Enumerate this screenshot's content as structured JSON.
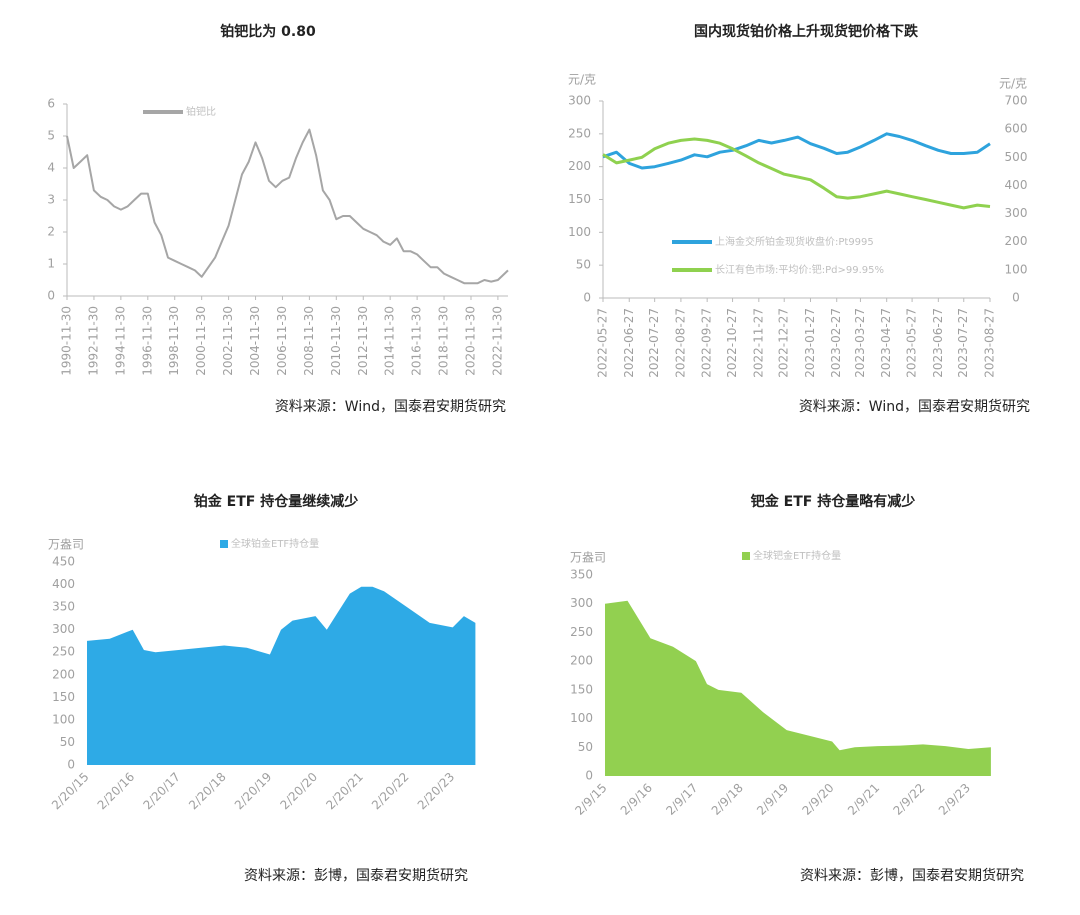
{
  "chart_data": [
    {
      "type": "line",
      "title": "铂钯比为 0.80",
      "source": "资料来源：Wind，国泰君安期货研究",
      "x": [
        "1990-11-30",
        "1991-05-31",
        "1991-11-30",
        "1992-05-31",
        "1992-11-30",
        "1993-05-31",
        "1993-11-30",
        "1994-05-31",
        "1994-11-30",
        "1995-05-31",
        "1995-11-30",
        "1996-05-31",
        "1996-11-30",
        "1997-05-31",
        "1997-11-30",
        "1998-05-31",
        "1998-11-30",
        "1999-05-31",
        "1999-11-30",
        "2000-05-31",
        "2000-11-30",
        "2001-05-31",
        "2001-11-30",
        "2002-05-31",
        "2002-11-30",
        "2003-05-31",
        "2003-11-30",
        "2004-05-31",
        "2004-11-30",
        "2005-05-31",
        "2005-11-30",
        "2006-05-31",
        "2006-11-30",
        "2007-05-31",
        "2007-11-30",
        "2008-05-31",
        "2008-11-30",
        "2009-05-31",
        "2009-11-30",
        "2010-05-31",
        "2010-11-30",
        "2011-05-31",
        "2011-11-30",
        "2012-05-31",
        "2012-11-30",
        "2013-05-31",
        "2013-11-30",
        "2014-05-31",
        "2014-11-30",
        "2015-05-31",
        "2015-11-30",
        "2016-05-31",
        "2016-11-30",
        "2017-05-31",
        "2017-11-30",
        "2018-05-31",
        "2018-11-30",
        "2019-05-31",
        "2019-11-30",
        "2020-05-31",
        "2020-11-30",
        "2021-05-31",
        "2021-11-30",
        "2022-05-31",
        "2022-11-30",
        "2023-05-31",
        "2023-08-31"
      ],
      "series": [
        {
          "name": "铂钯比",
          "color": "#a6a6a6",
          "values": [
            5.0,
            4.0,
            4.2,
            4.4,
            3.3,
            3.1,
            3.0,
            2.8,
            2.7,
            2.8,
            3.0,
            3.2,
            3.2,
            2.3,
            1.9,
            1.2,
            1.1,
            1.0,
            0.9,
            0.8,
            0.6,
            0.9,
            1.2,
            1.7,
            2.2,
            3.0,
            3.8,
            4.2,
            4.8,
            4.3,
            3.6,
            3.4,
            3.6,
            3.7,
            4.3,
            4.8,
            5.2,
            4.4,
            3.3,
            3.0,
            2.4,
            2.5,
            2.5,
            2.3,
            2.1,
            2.0,
            1.9,
            1.7,
            1.6,
            1.8,
            1.4,
            1.4,
            1.3,
            1.1,
            0.9,
            0.9,
            0.7,
            0.6,
            0.5,
            0.4,
            0.4,
            0.4,
            0.5,
            0.45,
            0.5,
            0.7,
            0.8
          ]
        }
      ],
      "xlim": [
        "1990-11-30",
        "2023-08-31"
      ],
      "xticks": [
        "1990-11-30",
        "1992-11-30",
        "1994-11-30",
        "1996-11-30",
        "1998-11-30",
        "2000-11-30",
        "2002-11-30",
        "2004-11-30",
        "2006-11-30",
        "2008-11-30",
        "2010-11-30",
        "2012-11-30",
        "2014-11-30",
        "2016-11-30",
        "2018-11-30",
        "2020-11-30",
        "2022-11-30"
      ],
      "ylim": [
        0,
        6
      ],
      "yticks": [
        0,
        1,
        2,
        3,
        4,
        5,
        6
      ]
    },
    {
      "type": "line",
      "title": "国内现货铂价格上升现货钯价格下跌",
      "source": "资料来源：Wind，国泰君安期货研究",
      "y_unit": "元/克",
      "y2_unit": "元/克",
      "x": [
        "2022-05-27",
        "2022-06-12",
        "2022-06-27",
        "2022-07-12",
        "2022-07-27",
        "2022-08-12",
        "2022-08-27",
        "2022-09-12",
        "2022-09-27",
        "2022-10-12",
        "2022-10-27",
        "2022-11-12",
        "2022-11-27",
        "2022-12-12",
        "2022-12-27",
        "2023-01-12",
        "2023-01-27",
        "2023-02-12",
        "2023-02-27",
        "2023-03-12",
        "2023-03-27",
        "2023-04-12",
        "2023-04-27",
        "2023-05-12",
        "2023-05-27",
        "2023-06-12",
        "2023-06-27",
        "2023-07-12",
        "2023-07-27",
        "2023-08-12",
        "2023-08-27"
      ],
      "series": [
        {
          "name": "上海金交所铂金现货收盘价:Pt9995",
          "color": "#2ea3dd",
          "values": [
            215,
            222,
            205,
            198,
            200,
            205,
            210,
            218,
            215,
            222,
            225,
            232,
            240,
            236,
            240,
            245,
            235,
            228,
            220,
            222,
            230,
            240,
            250,
            246,
            240,
            232,
            225,
            220,
            220,
            222,
            235
          ]
        },
        {
          "name": "长江有色市场:平均价:钯:Pd>99.95%",
          "color": "#8fd14f",
          "axis": "y2",
          "values": [
            510,
            480,
            490,
            500,
            530,
            550,
            560,
            565,
            560,
            550,
            530,
            505,
            480,
            460,
            440,
            430,
            420,
            390,
            360,
            355,
            360,
            370,
            380,
            370,
            360,
            350,
            340,
            330,
            320,
            330,
            325
          ]
        }
      ],
      "xlim": [
        "2022-05-27",
        "2023-08-27"
      ],
      "xticks": [
        "2022-05-27",
        "2022-06-27",
        "2022-07-27",
        "2022-08-27",
        "2022-09-27",
        "2022-10-27",
        "2022-11-27",
        "2022-12-27",
        "2023-01-27",
        "2023-02-27",
        "2023-03-27",
        "2023-04-27",
        "2023-05-27",
        "2023-06-27",
        "2023-07-27",
        "2023-08-27"
      ],
      "ylim": [
        0,
        300
      ],
      "yticks": [
        0,
        50,
        100,
        150,
        200,
        250,
        300
      ],
      "y2lim": [
        0,
        700
      ],
      "y2ticks": [
        0,
        100,
        200,
        300,
        400,
        500,
        600,
        700
      ]
    },
    {
      "type": "area",
      "title": "铂金 ETF 持仓量继续减少",
      "source": "资料来源：彭博，国泰君安期货研究",
      "y_unit": "万盎司",
      "x": [
        "2015-02-20",
        "2015-08-20",
        "2016-02-20",
        "2016-05-20",
        "2016-08-20",
        "2017-02-20",
        "2017-08-20",
        "2018-02-20",
        "2018-08-20",
        "2019-02-20",
        "2019-05-20",
        "2019-08-20",
        "2020-02-20",
        "2020-05-20",
        "2020-08-20",
        "2020-11-20",
        "2021-02-20",
        "2021-05-20",
        "2021-08-20",
        "2022-02-20",
        "2022-08-20",
        "2023-02-20",
        "2023-05-20",
        "2023-08-20"
      ],
      "series": [
        {
          "name": "全球铂金ETF持仓量",
          "color": "#2eaae6",
          "values": [
            275,
            280,
            300,
            255,
            250,
            255,
            260,
            265,
            260,
            245,
            300,
            320,
            330,
            300,
            340,
            380,
            395,
            395,
            385,
            350,
            315,
            305,
            330,
            315
          ]
        }
      ],
      "xlim": [
        "2015-02-20",
        "2023-10-20"
      ],
      "xticks": [
        {
          "value": "2015-02-20",
          "label": "2/20/15"
        },
        {
          "value": "2016-02-20",
          "label": "2/20/16"
        },
        {
          "value": "2017-02-20",
          "label": "2/20/17"
        },
        {
          "value": "2018-02-20",
          "label": "2/20/18"
        },
        {
          "value": "2019-02-20",
          "label": "2/20/19"
        },
        {
          "value": "2020-02-20",
          "label": "2/20/20"
        },
        {
          "value": "2021-02-20",
          "label": "2/20/21"
        },
        {
          "value": "2022-02-20",
          "label": "2/20/22"
        },
        {
          "value": "2023-02-20",
          "label": "2/20/23"
        }
      ],
      "ylim": [
        0,
        450
      ],
      "yticks": [
        0,
        50,
        100,
        150,
        200,
        250,
        300,
        350,
        400,
        450
      ]
    },
    {
      "type": "area",
      "title": "钯金 ETF 持仓量略有减少",
      "source": "资料来源：彭博，国泰君安期货研究",
      "y_unit": "万盎司",
      "x": [
        "2015-02-09",
        "2015-08-09",
        "2016-02-09",
        "2016-08-09",
        "2017-02-09",
        "2017-05-09",
        "2017-08-09",
        "2018-02-09",
        "2018-08-09",
        "2019-02-09",
        "2019-08-09",
        "2020-02-09",
        "2020-04-09",
        "2020-08-09",
        "2021-02-09",
        "2021-08-09",
        "2022-02-09",
        "2022-08-09",
        "2023-02-09",
        "2023-08-09"
      ],
      "series": [
        {
          "name": "全球钯金ETF持仓量",
          "color": "#92d050",
          "values": [
            300,
            305,
            240,
            225,
            200,
            160,
            150,
            145,
            110,
            80,
            70,
            60,
            45,
            50,
            52,
            53,
            55,
            52,
            47,
            50
          ]
        }
      ],
      "xlim": [
        "2015-02-09",
        "2023-11-30"
      ],
      "xticks": [
        {
          "value": "2015-02-09",
          "label": "2/9/15"
        },
        {
          "value": "2016-02-09",
          "label": "2/9/16"
        },
        {
          "value": "2017-02-09",
          "label": "2/9/17"
        },
        {
          "value": "2018-02-09",
          "label": "2/9/18"
        },
        {
          "value": "2019-02-09",
          "label": "2/9/19"
        },
        {
          "value": "2020-02-09",
          "label": "2/9/20"
        },
        {
          "value": "2021-02-09",
          "label": "2/9/21"
        },
        {
          "value": "2022-02-09",
          "label": "2/9/22"
        },
        {
          "value": "2023-02-09",
          "label": "2/9/23"
        }
      ],
      "ylim": [
        0,
        350
      ],
      "yticks": [
        0,
        50,
        100,
        150,
        200,
        250,
        300,
        350
      ]
    }
  ]
}
